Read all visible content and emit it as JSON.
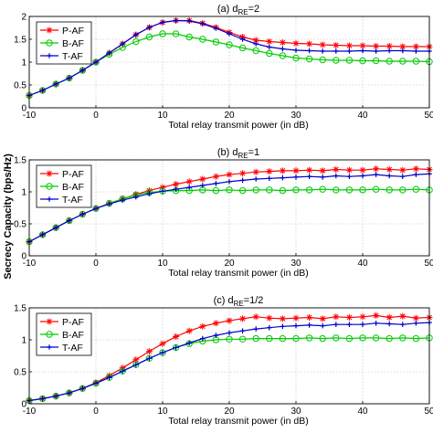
{
  "figure_ylabel": "Secrecy Capacity (bps/Hz)",
  "chart_data": [
    {
      "type": "line",
      "title_prefix": "(a)  d",
      "title_sub": "RE",
      "title_suffix": "=2",
      "xlabel": "Total relay transmit power (in dB)",
      "ylabel": "Secrecy Capacity (bps/Hz)",
      "xlim": [
        -10,
        50
      ],
      "ylim": [
        0,
        2
      ],
      "xticks": [
        -10,
        0,
        10,
        20,
        30,
        40,
        50
      ],
      "yticks": [
        0,
        0.5,
        1,
        1.5,
        2
      ],
      "grid": true,
      "legend": "top-left",
      "x": [
        -10,
        -8,
        -6,
        -4,
        -2,
        0,
        2,
        4,
        6,
        8,
        10,
        12,
        14,
        16,
        18,
        20,
        22,
        24,
        26,
        28,
        30,
        32,
        34,
        36,
        38,
        40,
        42,
        44,
        46,
        48,
        50
      ],
      "series": [
        {
          "name": "P-AF",
          "color": "#ff0000",
          "marker": "star",
          "values": [
            0.27,
            0.38,
            0.52,
            0.65,
            0.82,
            1.0,
            1.2,
            1.4,
            1.6,
            1.76,
            1.87,
            1.91,
            1.91,
            1.85,
            1.76,
            1.65,
            1.55,
            1.48,
            1.45,
            1.43,
            1.41,
            1.4,
            1.38,
            1.37,
            1.36,
            1.36,
            1.35,
            1.35,
            1.34,
            1.34,
            1.34
          ]
        },
        {
          "name": "B-AF",
          "color": "#00cc00",
          "marker": "circle",
          "values": [
            0.27,
            0.38,
            0.52,
            0.65,
            0.82,
            1.0,
            1.17,
            1.32,
            1.45,
            1.55,
            1.62,
            1.62,
            1.55,
            1.5,
            1.44,
            1.38,
            1.31,
            1.25,
            1.19,
            1.14,
            1.09,
            1.07,
            1.05,
            1.04,
            1.04,
            1.03,
            1.03,
            1.02,
            1.02,
            1.02,
            1.01
          ]
        },
        {
          "name": "T-AF",
          "color": "#0000cc",
          "marker": "plus",
          "values": [
            0.27,
            0.38,
            0.52,
            0.65,
            0.82,
            1.0,
            1.2,
            1.4,
            1.6,
            1.76,
            1.87,
            1.91,
            1.9,
            1.84,
            1.74,
            1.62,
            1.5,
            1.4,
            1.33,
            1.29,
            1.26,
            1.25,
            1.24,
            1.24,
            1.24,
            1.25,
            1.24,
            1.25,
            1.25,
            1.24,
            1.24
          ]
        }
      ]
    },
    {
      "type": "line",
      "title_prefix": "(b)  d",
      "title_sub": "RE",
      "title_suffix": "=1",
      "xlabel": "Total relay transmit power (in dB)",
      "ylabel": "",
      "xlim": [
        -10,
        50
      ],
      "ylim": [
        0,
        1.5
      ],
      "xticks": [
        -10,
        0,
        10,
        20,
        30,
        40,
        50
      ],
      "yticks": [
        0,
        0.5,
        1,
        1.5
      ],
      "grid": true,
      "legend": "top-left",
      "x": [
        -10,
        -8,
        -6,
        -4,
        -2,
        0,
        2,
        4,
        6,
        8,
        10,
        12,
        14,
        16,
        18,
        20,
        22,
        24,
        26,
        28,
        30,
        32,
        34,
        36,
        38,
        40,
        42,
        44,
        46,
        48,
        50
      ],
      "series": [
        {
          "name": "P-AF",
          "color": "#ff0000",
          "marker": "star",
          "values": [
            0.22,
            0.33,
            0.44,
            0.55,
            0.65,
            0.74,
            0.82,
            0.89,
            0.96,
            1.02,
            1.07,
            1.12,
            1.16,
            1.2,
            1.24,
            1.27,
            1.29,
            1.31,
            1.32,
            1.33,
            1.33,
            1.34,
            1.33,
            1.35,
            1.34,
            1.34,
            1.36,
            1.35,
            1.34,
            1.36,
            1.35
          ]
        },
        {
          "name": "B-AF",
          "color": "#00cc00",
          "marker": "circle",
          "values": [
            0.22,
            0.33,
            0.44,
            0.55,
            0.65,
            0.74,
            0.82,
            0.89,
            0.95,
            0.99,
            1.01,
            1.02,
            1.02,
            1.03,
            1.02,
            1.03,
            1.02,
            1.03,
            1.03,
            1.02,
            1.03,
            1.03,
            1.04,
            1.03,
            1.03,
            1.03,
            1.04,
            1.03,
            1.03,
            1.04,
            1.03
          ]
        },
        {
          "name": "T-AF",
          "color": "#0000cc",
          "marker": "plus",
          "values": [
            0.22,
            0.33,
            0.44,
            0.55,
            0.65,
            0.74,
            0.81,
            0.87,
            0.92,
            0.97,
            1.01,
            1.04,
            1.07,
            1.1,
            1.13,
            1.16,
            1.18,
            1.2,
            1.21,
            1.22,
            1.23,
            1.24,
            1.23,
            1.25,
            1.24,
            1.25,
            1.27,
            1.25,
            1.24,
            1.27,
            1.28
          ]
        }
      ]
    },
    {
      "type": "line",
      "title_prefix": "(c)  d",
      "title_sub": "RE",
      "title_suffix": "=1/2",
      "xlabel": "Total relay transmit power (in dB)",
      "ylabel": "",
      "xlim": [
        -10,
        50
      ],
      "ylim": [
        0,
        1.5
      ],
      "xticks": [
        -10,
        0,
        10,
        20,
        30,
        40,
        50
      ],
      "yticks": [
        0,
        0.5,
        1,
        1.5
      ],
      "grid": true,
      "legend": "top-left",
      "x": [
        -10,
        -8,
        -6,
        -4,
        -2,
        0,
        2,
        4,
        6,
        8,
        10,
        12,
        14,
        16,
        18,
        20,
        22,
        24,
        26,
        28,
        30,
        32,
        34,
        36,
        38,
        40,
        42,
        44,
        46,
        48,
        50
      ],
      "series": [
        {
          "name": "P-AF",
          "color": "#ff0000",
          "marker": "star",
          "values": [
            0.05,
            0.08,
            0.12,
            0.17,
            0.24,
            0.33,
            0.44,
            0.56,
            0.69,
            0.82,
            0.94,
            1.05,
            1.14,
            1.21,
            1.26,
            1.3,
            1.33,
            1.36,
            1.34,
            1.33,
            1.34,
            1.35,
            1.33,
            1.36,
            1.35,
            1.36,
            1.38,
            1.35,
            1.37,
            1.34,
            1.35
          ]
        },
        {
          "name": "B-AF",
          "color": "#00cc00",
          "marker": "circle",
          "values": [
            0.05,
            0.08,
            0.12,
            0.17,
            0.24,
            0.32,
            0.41,
            0.51,
            0.61,
            0.71,
            0.8,
            0.88,
            0.94,
            0.98,
            1.0,
            1.01,
            1.01,
            1.02,
            1.02,
            1.02,
            1.02,
            1.03,
            1.02,
            1.03,
            1.02,
            1.03,
            1.03,
            1.02,
            1.03,
            1.02,
            1.03
          ]
        },
        {
          "name": "T-AF",
          "color": "#0000cc",
          "marker": "plus",
          "values": [
            0.05,
            0.08,
            0.12,
            0.17,
            0.24,
            0.32,
            0.41,
            0.51,
            0.61,
            0.71,
            0.8,
            0.88,
            0.95,
            1.02,
            1.07,
            1.11,
            1.14,
            1.17,
            1.19,
            1.21,
            1.22,
            1.23,
            1.22,
            1.24,
            1.24,
            1.24,
            1.26,
            1.25,
            1.24,
            1.26,
            1.27
          ]
        }
      ]
    }
  ]
}
